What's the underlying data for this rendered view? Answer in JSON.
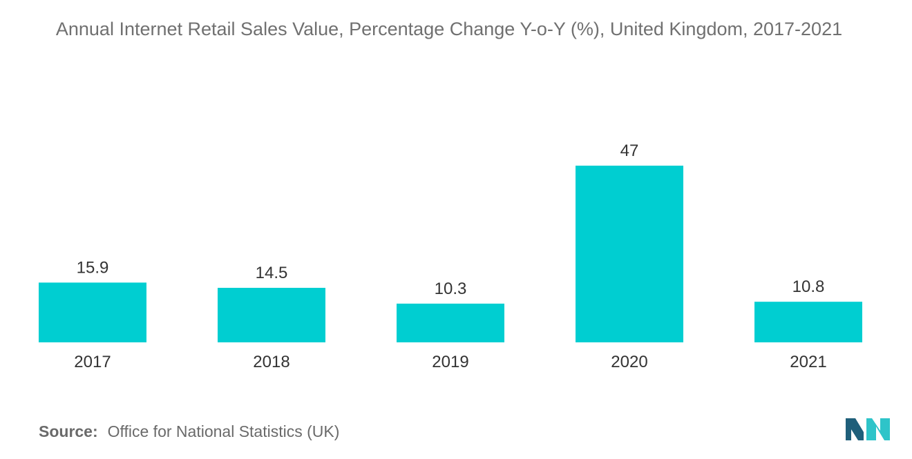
{
  "chart_data": {
    "type": "bar",
    "title": "Annual Internet Retail Sales Value, Percentage Change Y-o-Y (%), United Kingdom, 2017-2021",
    "categories": [
      "2017",
      "2018",
      "2019",
      "2020",
      "2021"
    ],
    "values": [
      15.9,
      14.5,
      10.3,
      47,
      10.8
    ],
    "value_labels": [
      "15.9",
      "14.5",
      "10.3",
      "47",
      "10.8"
    ],
    "xlabel": "",
    "ylabel": "",
    "ylim": [
      0,
      47
    ],
    "grid": false,
    "y_axis_visible": false,
    "bar_color": "#00CED1"
  },
  "source": {
    "label": "Source:",
    "text": "Office for National Statistics (UK)"
  },
  "colors": {
    "bar": "#00CED1",
    "text": "#333333",
    "title": "#707070",
    "logo_dark": "#1f5f7a",
    "logo_light": "#2ec4c9"
  },
  "logo": {
    "icon": "mordor-intelligence-logo-icon"
  }
}
